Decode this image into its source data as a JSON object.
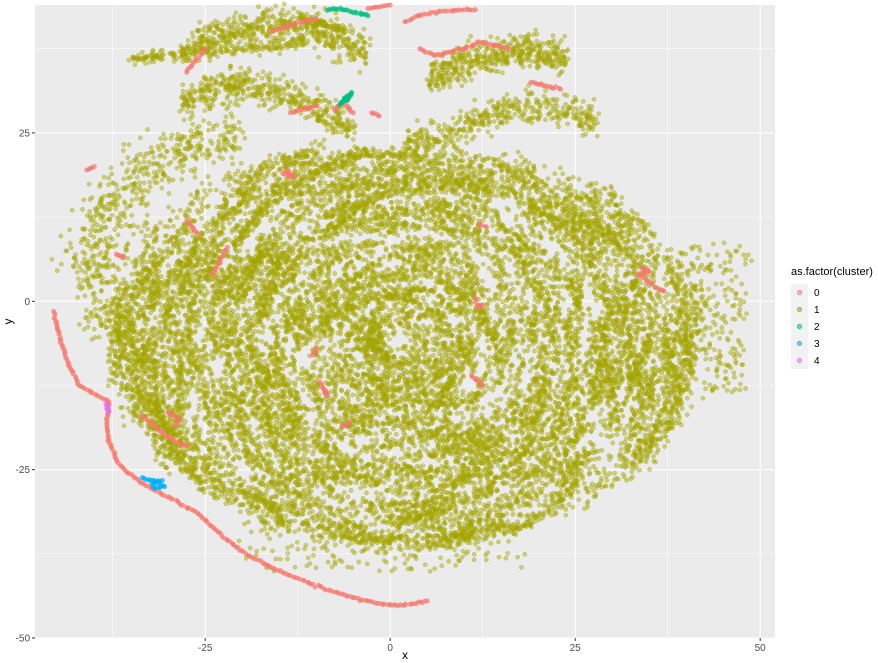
{
  "chart_data": {
    "type": "scatter",
    "title": "",
    "xlabel": "x",
    "ylabel": "y",
    "xlim": [
      -48,
      52
    ],
    "ylim": [
      -50,
      44
    ],
    "x_ticks": [
      -25,
      0,
      25,
      50
    ],
    "x_tick_labels": [
      "-25",
      "0",
      "25",
      "50"
    ],
    "y_ticks": [
      -50,
      -25,
      0,
      25
    ],
    "y_tick_labels": [
      "-50",
      "-25",
      "0",
      "25"
    ],
    "grid": true,
    "legend": {
      "title": "as.factor(cluster)",
      "placement": "right",
      "entries": [
        "0",
        "1",
        "2",
        "3",
        "4"
      ]
    },
    "colors": {
      "panel_background": "#EBEBEB",
      "grid": "#FFFFFF",
      "0": "#F8766D",
      "1": "#A3A500",
      "2": "#00BF7D",
      "3": "#00B0F6",
      "4": "#E76BF3"
    },
    "series": [
      {
        "name": "0",
        "color": "#F8766D",
        "points": [
          [
            -45.5,
            -1.5
          ],
          [
            -45.0,
            -4
          ],
          [
            -44.2,
            -7
          ],
          [
            -43.2,
            -10
          ],
          [
            -42.0,
            -12.5
          ],
          [
            -38.0,
            -15
          ],
          [
            -38.3,
            -18
          ],
          [
            -38.0,
            -21
          ],
          [
            -37.0,
            -23.5
          ],
          [
            -35.5,
            -25.5
          ],
          [
            -33.5,
            -27
          ],
          [
            -31.0,
            -28.5
          ],
          [
            -28.5,
            -30
          ],
          [
            -26.0,
            -31.5
          ],
          [
            -24.0,
            -33.5
          ],
          [
            -22.0,
            -35.5
          ],
          [
            -19.5,
            -37.5
          ],
          [
            -17.0,
            -39
          ],
          [
            -14.0,
            -40.5
          ],
          [
            -11.0,
            -41.8
          ],
          [
            -8.0,
            -43
          ],
          [
            -5.0,
            -44
          ],
          [
            -2.0,
            -44.8
          ],
          [
            1.0,
            -45.2
          ],
          [
            3.5,
            -44.9
          ],
          [
            5.0,
            -44.5
          ],
          [
            -33.5,
            -17
          ],
          [
            -31.5,
            -19
          ],
          [
            -29.5,
            -20.5
          ],
          [
            -27.5,
            -21.5
          ],
          [
            -30.0,
            -16.5
          ],
          [
            -28.5,
            -17.5
          ],
          [
            -29.0,
            -18.5
          ],
          [
            2.0,
            41.5
          ],
          [
            4.0,
            42.5
          ],
          [
            6.5,
            43.0
          ],
          [
            9.0,
            43.2
          ],
          [
            11.5,
            43.3
          ],
          [
            -16.0,
            40
          ],
          [
            -14.0,
            40.8
          ],
          [
            -12.0,
            41.5
          ],
          [
            -10.0,
            42.0
          ],
          [
            -25.0,
            37.5
          ],
          [
            -26.5,
            35.5
          ],
          [
            -27.5,
            34.0
          ],
          [
            -22.0,
            8
          ],
          [
            -24.0,
            4
          ],
          [
            -27.5,
            12
          ],
          [
            -26.0,
            10
          ],
          [
            -14.5,
            19
          ],
          [
            -13.0,
            18.5
          ],
          [
            -14.0,
            19.5
          ],
          [
            -7.5,
            28.5
          ],
          [
            -6.5,
            29.5
          ],
          [
            -5.0,
            28
          ],
          [
            -13.5,
            28
          ],
          [
            -12.0,
            28.5
          ],
          [
            -10.0,
            29
          ],
          [
            4.0,
            37.5
          ],
          [
            6.0,
            36.5
          ],
          [
            8.0,
            37
          ],
          [
            10.0,
            37.5
          ],
          [
            12.0,
            38.5
          ],
          [
            14.0,
            38
          ],
          [
            16.0,
            37.5
          ],
          [
            19.0,
            32.5
          ],
          [
            21.0,
            32
          ],
          [
            23.0,
            31.5
          ],
          [
            34.0,
            5.0
          ],
          [
            35.0,
            4.5
          ],
          [
            33.5,
            4.0
          ],
          [
            36.0,
            2.0
          ],
          [
            37.0,
            1.5
          ],
          [
            11.5,
            0.5
          ],
          [
            12.0,
            -1.0
          ],
          [
            12.5,
            -0.5
          ],
          [
            11.0,
            -11
          ],
          [
            12.0,
            -12
          ],
          [
            12.5,
            -12.5
          ],
          [
            12.0,
            11.5
          ],
          [
            13.0,
            11
          ],
          [
            -9.5,
            -12
          ],
          [
            -8.5,
            -14
          ],
          [
            -9.0,
            -13
          ],
          [
            -5.5,
            -18
          ],
          [
            -6.5,
            -18.5
          ],
          [
            -10.0,
            -7
          ],
          [
            -10.5,
            -8
          ],
          [
            0.0,
            44
          ],
          [
            -3.0,
            43.5
          ],
          [
            -2.5,
            28
          ],
          [
            -1.5,
            27.5
          ],
          [
            -40.0,
            20
          ],
          [
            -41.0,
            19.5
          ],
          [
            -37.0,
            7
          ],
          [
            -36.0,
            6.5
          ]
        ]
      },
      {
        "name": "1",
        "color": "#A3A500",
        "description_only": false,
        "generator": "dense",
        "points": []
      },
      {
        "name": "2",
        "color": "#00BF7D",
        "points": [
          [
            -8.5,
            43.2
          ],
          [
            -7.5,
            43.4
          ],
          [
            -6.5,
            43.3
          ],
          [
            -5.5,
            43.1
          ],
          [
            -4.5,
            42.8
          ],
          [
            -3.5,
            42.6
          ],
          [
            -3.0,
            42.4
          ],
          [
            -6.5,
            29.5
          ],
          [
            -6.0,
            30.0
          ],
          [
            -5.5,
            30.5
          ],
          [
            -6.2,
            30.2
          ],
          [
            -5.8,
            29.8
          ],
          [
            -5.2,
            31.0
          ],
          [
            -6.8,
            29.2
          ]
        ]
      },
      {
        "name": "3",
        "color": "#00B0F6",
        "points": [
          [
            -33.5,
            -26.2
          ],
          [
            -32.5,
            -26.5
          ],
          [
            -31.5,
            -26.8
          ],
          [
            -31.0,
            -27.2
          ],
          [
            -30.5,
            -27.5
          ],
          [
            -31.8,
            -27.8
          ],
          [
            -32.2,
            -27.0
          ],
          [
            -30.8,
            -26.6
          ]
        ]
      },
      {
        "name": "4",
        "color": "#E76BF3",
        "points": [
          [
            -38.4,
            -15.2
          ],
          [
            -38.2,
            -15.8
          ],
          [
            -38.0,
            -16.4
          ],
          [
            -38.3,
            -16.0
          ]
        ]
      }
    ]
  }
}
